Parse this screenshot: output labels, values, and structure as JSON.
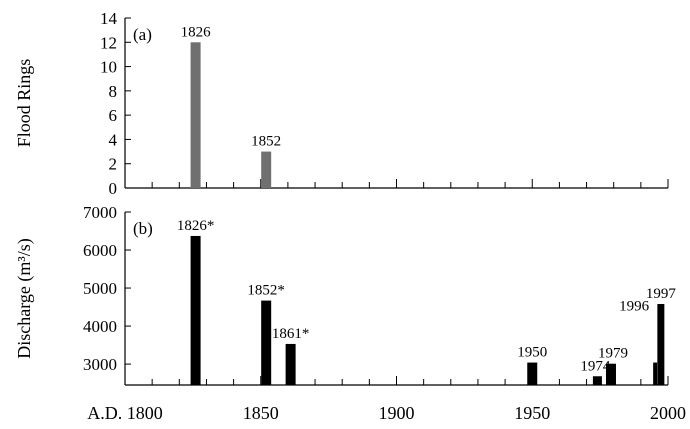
{
  "chart_data": [
    {
      "panel_label": "(a)",
      "type": "bar",
      "ylabel": "Flood Rings",
      "ylim": [
        0,
        14
      ],
      "yticks": [
        0,
        2,
        4,
        6,
        8,
        10,
        12,
        14
      ],
      "xlim": [
        1800,
        2000
      ],
      "color": "#707070",
      "bars": [
        {
          "x": 1826,
          "value": 12,
          "label": "1826"
        },
        {
          "x": 1852,
          "value": 3,
          "label": "1852"
        }
      ]
    },
    {
      "panel_label": "(b)",
      "type": "bar",
      "ylabel": "Discharge (m³/s)",
      "ylim": [
        2450,
        7000
      ],
      "yticks": [
        3000,
        4000,
        5000,
        6000,
        7000
      ],
      "xlim": [
        1800,
        2000
      ],
      "xticks": [
        1800,
        1850,
        1900,
        1950,
        2000
      ],
      "xtick_labels": [
        "A.D. 1800",
        "1850",
        "1900",
        "1950",
        "2000"
      ],
      "color": "#000000",
      "bars": [
        {
          "x": 1826,
          "value": 6370,
          "label": "1826*"
        },
        {
          "x": 1852,
          "value": 4670,
          "label": "1852*"
        },
        {
          "x": 1861,
          "value": 3530,
          "label": "1861*"
        },
        {
          "x": 1950,
          "value": 3040,
          "label": "1950"
        },
        {
          "x": 1974,
          "value": 2680,
          "label": "1974"
        },
        {
          "x": 1979,
          "value": 3010,
          "label": "1979"
        },
        {
          "x": 1996,
          "value": 3040,
          "label": "1996"
        },
        {
          "x": 1997,
          "value": 4580,
          "label": "1997"
        }
      ]
    }
  ]
}
